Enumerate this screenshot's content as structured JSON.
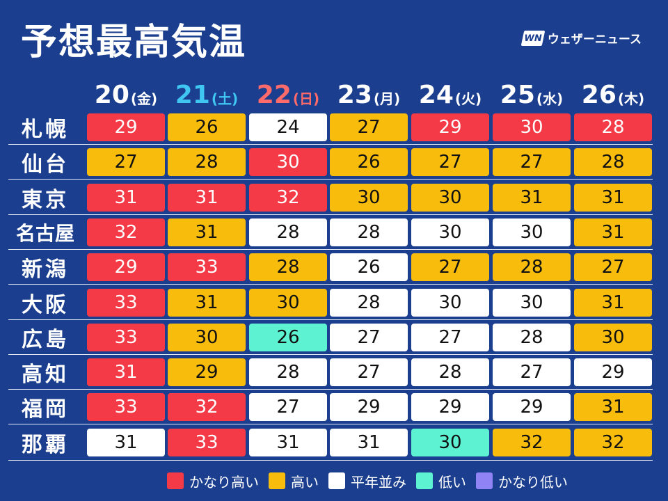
{
  "title": "予想最高気温",
  "brand": {
    "logo": "WN",
    "name": "ウェザーニュース"
  },
  "colors": {
    "vh": "#f53a47",
    "h": "#f8bd0c",
    "n": "#ffffff",
    "l": "#5cf2d2",
    "vl": "#8f83f5"
  },
  "days": [
    {
      "num": "20",
      "wd": "(金)",
      "type": ""
    },
    {
      "num": "21",
      "wd": "(土)",
      "type": "sat"
    },
    {
      "num": "22",
      "wd": "(日)",
      "type": "sun"
    },
    {
      "num": "23",
      "wd": "(月)",
      "type": ""
    },
    {
      "num": "24",
      "wd": "(火)",
      "type": ""
    },
    {
      "num": "25",
      "wd": "(水)",
      "type": ""
    },
    {
      "num": "26",
      "wd": "(木)",
      "type": ""
    }
  ],
  "rows": [
    {
      "city": "札幌",
      "values": [
        "29",
        "26",
        "24",
        "27",
        "29",
        "30",
        "28"
      ],
      "levels": [
        "vh",
        "h",
        "n",
        "h",
        "vh",
        "vh",
        "vh"
      ]
    },
    {
      "city": "仙台",
      "values": [
        "27",
        "28",
        "30",
        "26",
        "27",
        "27",
        "28"
      ],
      "levels": [
        "h",
        "h",
        "vh",
        "h",
        "h",
        "h",
        "h"
      ]
    },
    {
      "city": "東京",
      "values": [
        "31",
        "31",
        "32",
        "30",
        "30",
        "31",
        "31"
      ],
      "levels": [
        "vh",
        "vh",
        "vh",
        "h",
        "h",
        "h",
        "h"
      ]
    },
    {
      "city": "名古屋",
      "values": [
        "32",
        "31",
        "28",
        "28",
        "30",
        "30",
        "31"
      ],
      "levels": [
        "vh",
        "h",
        "n",
        "n",
        "n",
        "n",
        "h"
      ]
    },
    {
      "city": "新潟",
      "values": [
        "29",
        "33",
        "28",
        "26",
        "27",
        "28",
        "27"
      ],
      "levels": [
        "vh",
        "vh",
        "h",
        "n",
        "h",
        "h",
        "h"
      ]
    },
    {
      "city": "大阪",
      "values": [
        "33",
        "31",
        "30",
        "28",
        "30",
        "30",
        "31"
      ],
      "levels": [
        "vh",
        "h",
        "h",
        "n",
        "n",
        "n",
        "h"
      ]
    },
    {
      "city": "広島",
      "values": [
        "33",
        "30",
        "26",
        "27",
        "27",
        "28",
        "30"
      ],
      "levels": [
        "vh",
        "h",
        "l",
        "n",
        "n",
        "n",
        "h"
      ]
    },
    {
      "city": "高知",
      "values": [
        "31",
        "29",
        "28",
        "27",
        "28",
        "27",
        "29"
      ],
      "levels": [
        "vh",
        "h",
        "n",
        "n",
        "n",
        "n",
        "n"
      ]
    },
    {
      "city": "福岡",
      "values": [
        "33",
        "32",
        "27",
        "29",
        "29",
        "29",
        "31"
      ],
      "levels": [
        "vh",
        "vh",
        "n",
        "n",
        "n",
        "n",
        "h"
      ]
    },
    {
      "city": "那覇",
      "values": [
        "31",
        "33",
        "31",
        "31",
        "30",
        "32",
        "32"
      ],
      "levels": [
        "n",
        "vh",
        "n",
        "n",
        "l",
        "h",
        "h"
      ]
    }
  ],
  "legend": [
    {
      "label": "かなり高い",
      "level": "vh"
    },
    {
      "label": "高い",
      "level": "h"
    },
    {
      "label": "平年並み",
      "level": "n"
    },
    {
      "label": "低い",
      "level": "l"
    },
    {
      "label": "かなり低い",
      "level": "vl"
    }
  ]
}
